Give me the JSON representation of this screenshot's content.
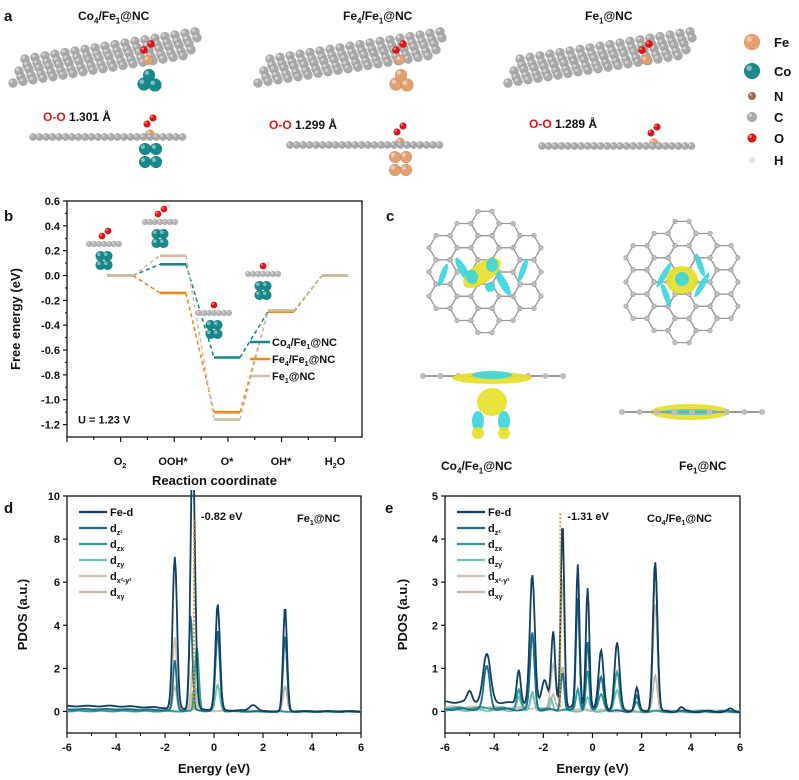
{
  "panel_a": {
    "label": "a",
    "structures": [
      {
        "title": "Co4/Fe1@NC",
        "title_main": "Co",
        "title_sub1": "4",
        "title_mid": "/Fe",
        "title_sub2": "1",
        "title_end": "@NC",
        "bond_prefix": "O-O",
        "bond_value": "1.301 Å",
        "cluster": "Co"
      },
      {
        "title": "Fe4/Fe1@NC",
        "title_main": "Fe",
        "title_sub1": "4",
        "title_mid": "/Fe",
        "title_sub2": "1",
        "title_end": "@NC",
        "bond_prefix": "O-O",
        "bond_value": "1.299 Å",
        "cluster": "Fe"
      },
      {
        "title": "Fe1@NC",
        "title_main": "Fe",
        "title_sub1": "1",
        "title_mid": "",
        "title_sub2": "",
        "title_end": "@NC",
        "bond_prefix": "O-O",
        "bond_value": "1.289 Å",
        "cluster": "none"
      }
    ],
    "legend": [
      {
        "element": "Fe",
        "color": "#e8a070"
      },
      {
        "element": "Co",
        "color": "#1d8a8a"
      },
      {
        "element": "N",
        "color": "#a0685a"
      },
      {
        "element": "C",
        "color": "#a9a9a9"
      },
      {
        "element": "O",
        "color": "#e01414"
      },
      {
        "element": "H",
        "color": "#f2e6dc"
      }
    ]
  },
  "panel_c": {
    "label": "c",
    "captions": [
      {
        "main": "Co",
        "sub1": "4",
        "mid": "/Fe",
        "sub2": "1",
        "end": "@NC"
      },
      {
        "main": "Fe",
        "sub1": "1",
        "mid": "",
        "sub2": "",
        "end": "@NC"
      }
    ],
    "colors": {
      "accumulation": "#e6e02a",
      "depletion": "#3cd6dc",
      "carbon": "#a8a8a8"
    }
  },
  "chart_data": [
    {
      "panel": "b",
      "type": "line",
      "title": "",
      "xlabel": "Reaction coordinate",
      "ylabel": "Free energy (eV)",
      "categories": [
        "O2",
        "OOH*",
        "O*",
        "OH*",
        "H2O"
      ],
      "category_labels": [
        {
          "main": "O",
          "sub": "2",
          "tail": ""
        },
        {
          "main": "OOH",
          "sub": "",
          "tail": "*"
        },
        {
          "main": "O",
          "sub": "",
          "tail": "*"
        },
        {
          "main": "OH",
          "sub": "",
          "tail": "*"
        },
        {
          "main": "H",
          "sub": "2",
          "tail": "O"
        }
      ],
      "ylim": [
        -1.3,
        0.6
      ],
      "yticks": [
        0.6,
        0.4,
        0.2,
        0.0,
        -0.2,
        -0.4,
        -0.6,
        -0.8,
        -1.0,
        -1.2
      ],
      "ytick_labels": [
        "0.6",
        "0.4",
        "0.2",
        "0.0",
        "-0.2",
        "-0.4",
        "-0.6",
        "-0.8",
        "-1.0",
        "-1.2"
      ],
      "annotation": "U = 1.23 V",
      "legend_position": "lower-right",
      "series": [
        {
          "name": "Co4/Fe1@NC",
          "label_main": "Co",
          "label_sub1": "4",
          "label_mid": "/Fe",
          "label_sub2": "1",
          "label_end": "@NC",
          "color": "#17898c",
          "values": [
            0.0,
            0.09,
            -0.66,
            -0.29,
            0.0
          ]
        },
        {
          "name": "Fe4/Fe1@NC",
          "label_main": "Fe",
          "label_sub1": "4",
          "label_mid": "/Fe",
          "label_sub2": "1",
          "label_end": "@NC",
          "color": "#f08a1e",
          "values": [
            0.0,
            -0.14,
            -1.1,
            -0.29,
            0.0
          ]
        },
        {
          "name": "Fe1@NC",
          "label_main": "Fe",
          "label_sub1": "1",
          "label_mid": "",
          "label_sub2": "",
          "label_end": "@NC",
          "color": "#cfbfa8",
          "values": [
            0.0,
            0.16,
            -1.16,
            -0.28,
            0.0
          ]
        }
      ]
    },
    {
      "panel": "d",
      "type": "line",
      "title": "Fe1@NC",
      "title_main": "Fe",
      "title_sub": "1",
      "title_end": "@NC",
      "xlabel": "Energy (eV)",
      "ylabel": "PDOS (a.u.)",
      "xlim": [
        -6,
        6
      ],
      "ylim": [
        -1,
        10
      ],
      "xticks": [
        -6,
        -4,
        -2,
        0,
        2,
        4,
        6
      ],
      "yticks": [
        0,
        2,
        4,
        6,
        8,
        10
      ],
      "d_band_center": -0.82,
      "d_band_label": "-0.82 eV",
      "legend_position": "top-left",
      "series": [
        {
          "name": "Fe-d",
          "main": "Fe-d",
          "sub": "",
          "color": "#0f3f63",
          "peaks": [
            [
              -1.6,
              7.0,
              0.09
            ],
            [
              -0.9,
              4.3,
              0.07
            ],
            [
              -0.85,
              8.8,
              0.09
            ],
            [
              0.15,
              4.9,
              0.09
            ],
            [
              2.9,
              4.85,
              0.08
            ],
            [
              1.6,
              0.3,
              0.15
            ]
          ],
          "baseline_left": 0.25
        },
        {
          "name": "dz2",
          "main": "d",
          "sub": "z²",
          "color": "#1b6f8a",
          "peaks": [
            [
              -1.6,
              2.3,
              0.07
            ],
            [
              -0.95,
              4.4,
              0.07
            ],
            [
              0.15,
              3.7,
              0.09
            ],
            [
              2.9,
              3.5,
              0.08
            ]
          ],
          "baseline_left": 0.1
        },
        {
          "name": "dzx",
          "main": "d",
          "sub": "zx",
          "color": "#2a9a96",
          "peaks": [
            [
              -0.7,
              3.0,
              0.08
            ],
            [
              0.15,
              3.6,
              0.09
            ]
          ],
          "baseline_left": 0.02
        },
        {
          "name": "dzy",
          "main": "d",
          "sub": "zy",
          "color": "#6cc2b6",
          "peaks": [
            [
              -0.7,
              1.1,
              0.08
            ],
            [
              0.15,
              1.25,
              0.09
            ]
          ],
          "baseline_left": 0.02
        },
        {
          "name": "dx2-y2",
          "main": "d",
          "sub": "x²-y²",
          "color": "#d0c3ae",
          "peaks": [
            [
              -1.6,
              3.4,
              0.08
            ],
            [
              -0.85,
              2.2,
              0.08
            ],
            [
              2.9,
              3.6,
              0.08
            ]
          ],
          "baseline_left": 0.1
        },
        {
          "name": "dxy",
          "main": "d",
          "sub": "xy",
          "color": "#c6b9a3",
          "peaks": [
            [
              -1.6,
              1.1,
              0.08
            ],
            [
              -0.85,
              0.9,
              0.08
            ],
            [
              2.9,
              1.2,
              0.08
            ]
          ],
          "baseline_left": 0.08
        }
      ]
    },
    {
      "panel": "e",
      "type": "line",
      "title": "Co4/Fe1@NC",
      "title_main": "Co",
      "title_sub": "4",
      "title_end": "/Fe",
      "title_sub2": "1",
      "title_end2": "@NC",
      "xlabel": "Energy (eV)",
      "ylabel": "PDOS (a.u.)",
      "xlim": [
        -6,
        6
      ],
      "ylim": [
        -0.5,
        5
      ],
      "xticks": [
        -6,
        -4,
        -2,
        0,
        2,
        4,
        6
      ],
      "yticks": [
        0,
        1,
        2,
        3,
        4,
        5
      ],
      "d_band_center": -1.31,
      "d_band_label": "-1.31 eV",
      "legend_position": "top-left",
      "series": [
        {
          "name": "Fe-d",
          "main": "Fe-d",
          "sub": "",
          "color": "#0f3f63",
          "peaks": [
            [
              -4.3,
              1.1,
              0.15
            ],
            [
              -5.0,
              0.25,
              0.1
            ],
            [
              -3.0,
              0.8,
              0.08
            ],
            [
              -2.45,
              3.0,
              0.1
            ],
            [
              -1.95,
              0.6,
              0.12
            ],
            [
              -1.6,
              1.7,
              0.08
            ],
            [
              -1.22,
              4.3,
              0.07
            ],
            [
              -0.6,
              3.3,
              0.07
            ],
            [
              -0.2,
              2.8,
              0.07
            ],
            [
              0.35,
              1.35,
              0.1
            ],
            [
              1.0,
              1.55,
              0.1
            ],
            [
              1.8,
              0.55,
              0.08
            ],
            [
              2.55,
              3.5,
              0.09
            ],
            [
              3.6,
              0.1,
              0.1
            ],
            [
              5.6,
              0.05,
              0.1
            ]
          ],
          "baseline_left": 0.22
        },
        {
          "name": "dz2",
          "main": "d",
          "sub": "z²",
          "color": "#1b6f8a",
          "peaks": [
            [
              -4.3,
              1.0,
              0.12
            ],
            [
              -2.45,
              1.8,
              0.09
            ],
            [
              -1.22,
              0.9,
              0.07
            ],
            [
              -0.6,
              2.6,
              0.07
            ],
            [
              -0.2,
              1.6,
              0.07
            ],
            [
              0.35,
              0.8,
              0.1
            ],
            [
              1.8,
              0.35,
              0.08
            ],
            [
              2.55,
              3.4,
              0.09
            ]
          ],
          "baseline_left": 0.05
        },
        {
          "name": "dzx",
          "main": "d",
          "sub": "zx",
          "color": "#2a9a96",
          "peaks": [
            [
              -3.0,
              0.45,
              0.08
            ],
            [
              -2.45,
              1.75,
              0.09
            ],
            [
              -0.6,
              0.5,
              0.07
            ],
            [
              -0.2,
              0.9,
              0.07
            ],
            [
              0.35,
              0.4,
              0.1
            ],
            [
              1.0,
              0.9,
              0.1
            ],
            [
              1.8,
              0.2,
              0.08
            ]
          ],
          "baseline_left": 0.08
        },
        {
          "name": "dzy",
          "main": "d",
          "sub": "zy",
          "color": "#6cc2b6",
          "peaks": [
            [
              -3.0,
              0.3,
              0.08
            ],
            [
              -2.45,
              0.45,
              0.08
            ],
            [
              -1.7,
              0.3,
              0.08
            ],
            [
              -0.2,
              0.3,
              0.08
            ],
            [
              1.0,
              0.5,
              0.1
            ]
          ],
          "baseline_left": 0.03
        },
        {
          "name": "dx2-y2",
          "main": "d",
          "sub": "x²-y²",
          "color": "#d0c3ae",
          "peaks": [
            [
              -1.6,
              1.05,
              0.1
            ],
            [
              -1.22,
              3.1,
              0.07
            ],
            [
              2.55,
              2.5,
              0.09
            ]
          ],
          "baseline_left": 0.1
        },
        {
          "name": "dxy",
          "main": "d",
          "sub": "xy",
          "color": "#c6b9a3",
          "peaks": [
            [
              -2.45,
              0.3,
              0.08
            ],
            [
              -1.6,
              0.35,
              0.08
            ],
            [
              -1.22,
              1.0,
              0.07
            ],
            [
              2.55,
              0.85,
              0.09
            ]
          ],
          "baseline_left": 0.08
        }
      ]
    }
  ],
  "panel_b_label": "b",
  "panel_d_label": "d",
  "panel_e_label": "e"
}
